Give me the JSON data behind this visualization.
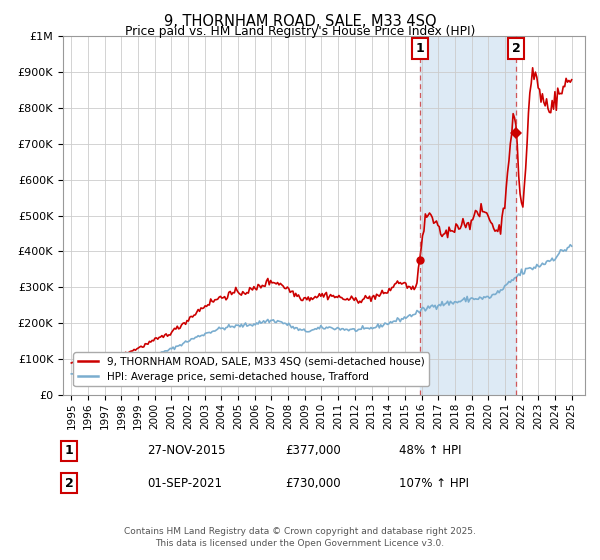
{
  "title1": "9, THORNHAM ROAD, SALE, M33 4SQ",
  "title2": "Price paid vs. HM Land Registry's House Price Index (HPI)",
  "legend1": "9, THORNHAM ROAD, SALE, M33 4SQ (semi-detached house)",
  "legend2": "HPI: Average price, semi-detached house, Trafford",
  "annotation1_label": "1",
  "annotation1_date": "27-NOV-2015",
  "annotation1_price": "£377,000",
  "annotation1_hpi": "48% ↑ HPI",
  "annotation1_year": 2015.9,
  "annotation1_value": 377000,
  "annotation2_label": "2",
  "annotation2_date": "01-SEP-2021",
  "annotation2_price": "£730,000",
  "annotation2_hpi": "107% ↑ HPI",
  "annotation2_year": 2021.67,
  "annotation2_value": 730000,
  "footer": "Contains HM Land Registry data © Crown copyright and database right 2025.\nThis data is licensed under the Open Government Licence v3.0.",
  "red_color": "#cc0000",
  "blue_color": "#7aadcf",
  "shade_color": "#ddeaf5",
  "ylim": [
    0,
    1000000
  ],
  "xlim_start": 1994.5,
  "xlim_end": 2025.8
}
